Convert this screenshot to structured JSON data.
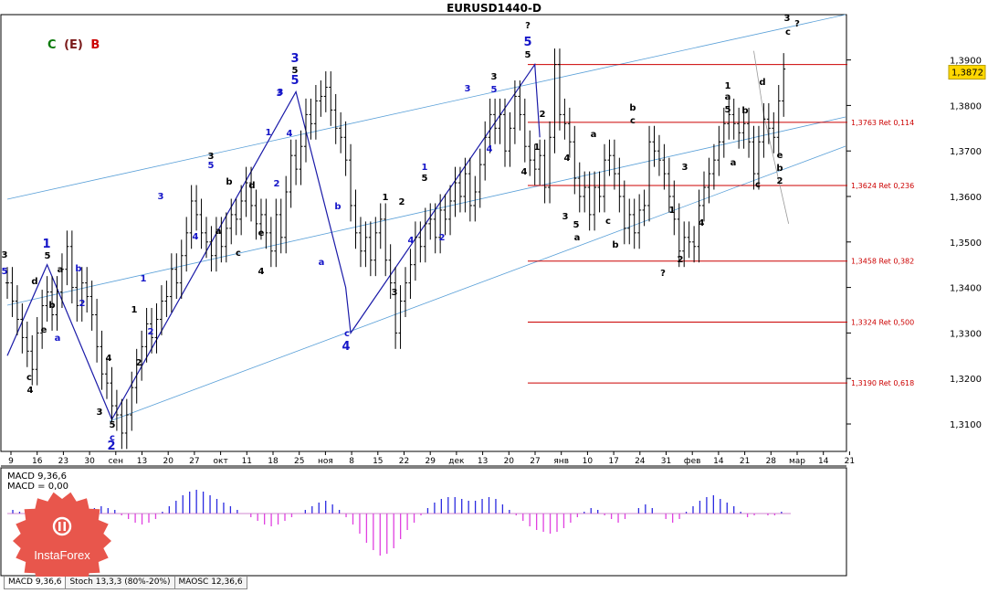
{
  "window": {
    "title": "EURUSD1440-D"
  },
  "legend": {
    "c_label": "C",
    "e_label": "(E)",
    "b_label": "B",
    "c_color": "#0a7a0a",
    "e_color": "#7a1a1a",
    "b_color": "#cc0000"
  },
  "current_price": "1,3872",
  "macd_panel": {
    "line1": "MACD 9,36,6",
    "line2": "MACD = 0,00"
  },
  "tabs": [
    {
      "label": "MACD 9,36,6"
    },
    {
      "label": "Stoch 13,3,3 (80%-20%)"
    },
    {
      "label": "MAOSC 12,36,6"
    }
  ],
  "logo": {
    "text": "InstaForex"
  },
  "colors": {
    "fib": "#cc0000",
    "channel": "#5aa0d8",
    "wave_blue": "#1a1aa8",
    "hist_pos": "#2a2ae0",
    "hist_neg": "#e040e0"
  },
  "chart_data": {
    "type": "candlestick",
    "title": "EURUSD1440-D",
    "y_axis": {
      "range": [
        1.303,
        1.398
      ],
      "ticks": [
        "1,3900",
        "1,3800",
        "1,3700",
        "1,3600",
        "1,3500",
        "1,3400",
        "1,3300",
        "1,3200",
        "1,3100"
      ]
    },
    "x_axis": {
      "ticks": [
        "9",
        "16",
        "23",
        "30",
        "сен",
        "13",
        "20",
        "27",
        "окт",
        "11",
        "18",
        "25",
        "ноя",
        "8",
        "15",
        "22",
        "29",
        "дек",
        "13",
        "20",
        "27",
        "янв",
        "10",
        "17",
        "24",
        "31",
        "фев",
        "14",
        "21",
        "28",
        "мар",
        "14",
        "21"
      ]
    },
    "fib_levels": [
      {
        "label": "1,3763 Ret 0,114",
        "price": 1.3763
      },
      {
        "label": "1,3624 Ret 0,236",
        "price": 1.3624
      },
      {
        "label": "1,3458 Ret 0,382",
        "price": 1.3458
      },
      {
        "label": "1,3324 Ret 0,500",
        "price": 1.3324
      },
      {
        "label": "1,3190 Ret 0,618",
        "price": 1.319
      }
    ],
    "fib_top_price": 1.389,
    "close_series": [
      1.341,
      1.337,
      1.333,
      1.329,
      1.326,
      1.322,
      1.33,
      1.336,
      1.339,
      1.334,
      1.339,
      1.344,
      1.349,
      1.34,
      1.336,
      1.341,
      1.338,
      1.334,
      1.327,
      1.321,
      1.319,
      1.314,
      1.312,
      1.308,
      1.312,
      1.318,
      1.323,
      1.327,
      1.332,
      1.329,
      1.333,
      1.337,
      1.338,
      1.344,
      1.341,
      1.347,
      1.352,
      1.359,
      1.356,
      1.352,
      1.35,
      1.347,
      1.352,
      1.349,
      1.353,
      1.356,
      1.355,
      1.359,
      1.363,
      1.358,
      1.354,
      1.356,
      1.352,
      1.348,
      1.356,
      1.351,
      1.361,
      1.369,
      1.366,
      1.371,
      1.378,
      1.376,
      1.381,
      1.382,
      1.384,
      1.379,
      1.375,
      1.373,
      1.368,
      1.358,
      1.352,
      1.348,
      1.351,
      1.346,
      1.352,
      1.355,
      1.346,
      1.341,
      1.33,
      1.337,
      1.341,
      1.345,
      1.351,
      1.349,
      1.354,
      1.355,
      1.351,
      1.357,
      1.355,
      1.359,
      1.363,
      1.36,
      1.365,
      1.358,
      1.361,
      1.367,
      1.373,
      1.378,
      1.375,
      1.378,
      1.37,
      1.375,
      1.382,
      1.378,
      1.371,
      1.368,
      1.366,
      1.369,
      1.362,
      1.373,
      1.389,
      1.378,
      1.376,
      1.372,
      1.364,
      1.36,
      1.362,
      1.356,
      1.362,
      1.36,
      1.368,
      1.369,
      1.365,
      1.36,
      1.353,
      1.356,
      1.352,
      1.357,
      1.358,
      1.372,
      1.37,
      1.368,
      1.365,
      1.36,
      1.355,
      1.348,
      1.351,
      1.35,
      1.349,
      1.358,
      1.362,
      1.365,
      1.368,
      1.372,
      1.376,
      1.378,
      1.376,
      1.374,
      1.376,
      1.372,
      1.365,
      1.372,
      1.377,
      1.375,
      1.373,
      1.381,
      1.388
    ],
    "macd_histogram": [
      0.2,
      0.1,
      -0.1,
      -0.3,
      -0.5,
      -0.8,
      -0.9,
      -1.0,
      -0.8,
      -0.5,
      -0.2,
      0.1,
      0.3,
      0.4,
      0.3,
      0.2,
      -0.1,
      -0.3,
      -0.5,
      -0.6,
      -0.5,
      -0.3,
      0.1,
      0.4,
      0.7,
      1.0,
      1.2,
      1.3,
      1.2,
      1.0,
      0.8,
      0.6,
      0.4,
      0.2,
      0.0,
      -0.2,
      -0.4,
      -0.6,
      -0.7,
      -0.6,
      -0.4,
      -0.2,
      0.0,
      0.2,
      0.4,
      0.6,
      0.7,
      0.5,
      0.2,
      -0.2,
      -0.6,
      -1.1,
      -1.6,
      -2.0,
      -2.3,
      -2.2,
      -1.9,
      -1.4,
      -0.9,
      -0.5,
      -0.1,
      0.3,
      0.6,
      0.8,
      0.9,
      0.9,
      0.8,
      0.7,
      0.7,
      0.8,
      0.9,
      0.8,
      0.5,
      0.2,
      -0.1,
      -0.4,
      -0.7,
      -0.9,
      -1.0,
      -1.1,
      -1.0,
      -0.8,
      -0.5,
      -0.2,
      0.1,
      0.3,
      0.2,
      -0.1,
      -0.3,
      -0.5,
      -0.3,
      0.0,
      0.3,
      0.5,
      0.3,
      0.0,
      -0.3,
      -0.5,
      -0.3,
      0.1,
      0.4,
      0.7,
      0.9,
      1.0,
      0.8,
      0.6,
      0.4,
      0.1,
      -0.2,
      -0.1,
      0.0,
      -0.1,
      -0.1,
      0.1
    ]
  },
  "wave_labels": [
    {
      "t": "3",
      "c": "black"
    },
    {
      "t": "5",
      "c": "blue"
    },
    {
      "t": "d",
      "c": "black"
    },
    {
      "t": "b",
      "c": "black"
    },
    {
      "t": "c",
      "c": "black"
    },
    {
      "t": "4",
      "c": "black"
    },
    {
      "t": "1",
      "c": "blue"
    },
    {
      "t": "5",
      "c": "black"
    },
    {
      "t": "a",
      "c": "black"
    },
    {
      "t": "e",
      "c": "black"
    },
    {
      "t": "b",
      "c": "blue"
    },
    {
      "t": "a",
      "c": "blue"
    },
    {
      "t": "2",
      "c": "blue"
    },
    {
      "t": "4",
      "c": "black"
    },
    {
      "t": "3",
      "c": "black"
    },
    {
      "t": "5",
      "c": "black"
    },
    {
      "t": "c",
      "c": "blue"
    },
    {
      "t": "2",
      "c": "blue"
    },
    {
      "t": "1",
      "c": "black"
    },
    {
      "t": "2",
      "c": "black"
    },
    {
      "t": "1",
      "c": "blue"
    },
    {
      "t": "2",
      "c": "blue"
    },
    {
      "t": "3",
      "c": "blue"
    },
    {
      "t": "4",
      "c": "blue"
    },
    {
      "t": "3",
      "c": "black"
    },
    {
      "t": "5",
      "c": "blue"
    },
    {
      "t": "b",
      "c": "black"
    },
    {
      "t": "a",
      "c": "black"
    },
    {
      "t": "c",
      "c": "black"
    },
    {
      "t": "d",
      "c": "black"
    },
    {
      "t": "e",
      "c": "black"
    },
    {
      "t": "4",
      "c": "black"
    },
    {
      "t": "1",
      "c": "blue"
    },
    {
      "t": "2",
      "c": "blue"
    },
    {
      "t": "3",
      "c": "blue"
    },
    {
      "t": "3",
      "c": "blue"
    },
    {
      "t": "5",
      "c": "black"
    },
    {
      "t": "5",
      "c": "blue"
    },
    {
      "t": "3",
      "c": "blue"
    },
    {
      "t": "4",
      "c": "blue"
    },
    {
      "t": "b",
      "c": "blue"
    },
    {
      "t": "a",
      "c": "blue"
    },
    {
      "t": "c",
      "c": "blue"
    },
    {
      "t": "4",
      "c": "blue"
    },
    {
      "t": "1",
      "c": "black"
    },
    {
      "t": "3",
      "c": "black"
    },
    {
      "t": "2",
      "c": "black"
    },
    {
      "t": "4",
      "c": "blue"
    },
    {
      "t": "5",
      "c": "black"
    },
    {
      "t": "1",
      "c": "blue"
    },
    {
      "t": "2",
      "c": "blue"
    },
    {
      "t": "3",
      "c": "black"
    },
    {
      "t": "5",
      "c": "blue"
    },
    {
      "t": "3",
      "c": "blue"
    },
    {
      "t": "4",
      "c": "blue"
    },
    {
      "t": "4",
      "c": "black"
    },
    {
      "t": "?",
      "c": "black"
    },
    {
      "t": "5",
      "c": "blue"
    },
    {
      "t": "5",
      "c": "black"
    },
    {
      "t": "2",
      "c": "black"
    },
    {
      "t": "1",
      "c": "black"
    },
    {
      "t": "3",
      "c": "black"
    },
    {
      "t": "4",
      "c": "black"
    },
    {
      "t": "5",
      "c": "black"
    },
    {
      "t": "a",
      "c": "black"
    },
    {
      "t": "a",
      "c": "black"
    },
    {
      "t": "b",
      "c": "black"
    },
    {
      "t": "c",
      "c": "black"
    },
    {
      "t": "b",
      "c": "black"
    },
    {
      "t": "c",
      "c": "black"
    },
    {
      "t": "?",
      "c": "black"
    },
    {
      "t": "2",
      "c": "black"
    },
    {
      "t": "1",
      "c": "black"
    },
    {
      "t": "3",
      "c": "black"
    },
    {
      "t": "4",
      "c": "black"
    },
    {
      "t": "1",
      "c": "black"
    },
    {
      "t": "a",
      "c": "black"
    },
    {
      "t": "5",
      "c": "black"
    },
    {
      "t": "b",
      "c": "black"
    },
    {
      "t": "a",
      "c": "black"
    },
    {
      "t": "c",
      "c": "black"
    },
    {
      "t": "d",
      "c": "black"
    },
    {
      "t": "e",
      "c": "black"
    },
    {
      "t": "b",
      "c": "black"
    },
    {
      "t": "2",
      "c": "black"
    },
    {
      "t": "3",
      "c": "black"
    },
    {
      "t": "c",
      "c": "black"
    },
    {
      "t": "?",
      "c": "black"
    }
  ]
}
